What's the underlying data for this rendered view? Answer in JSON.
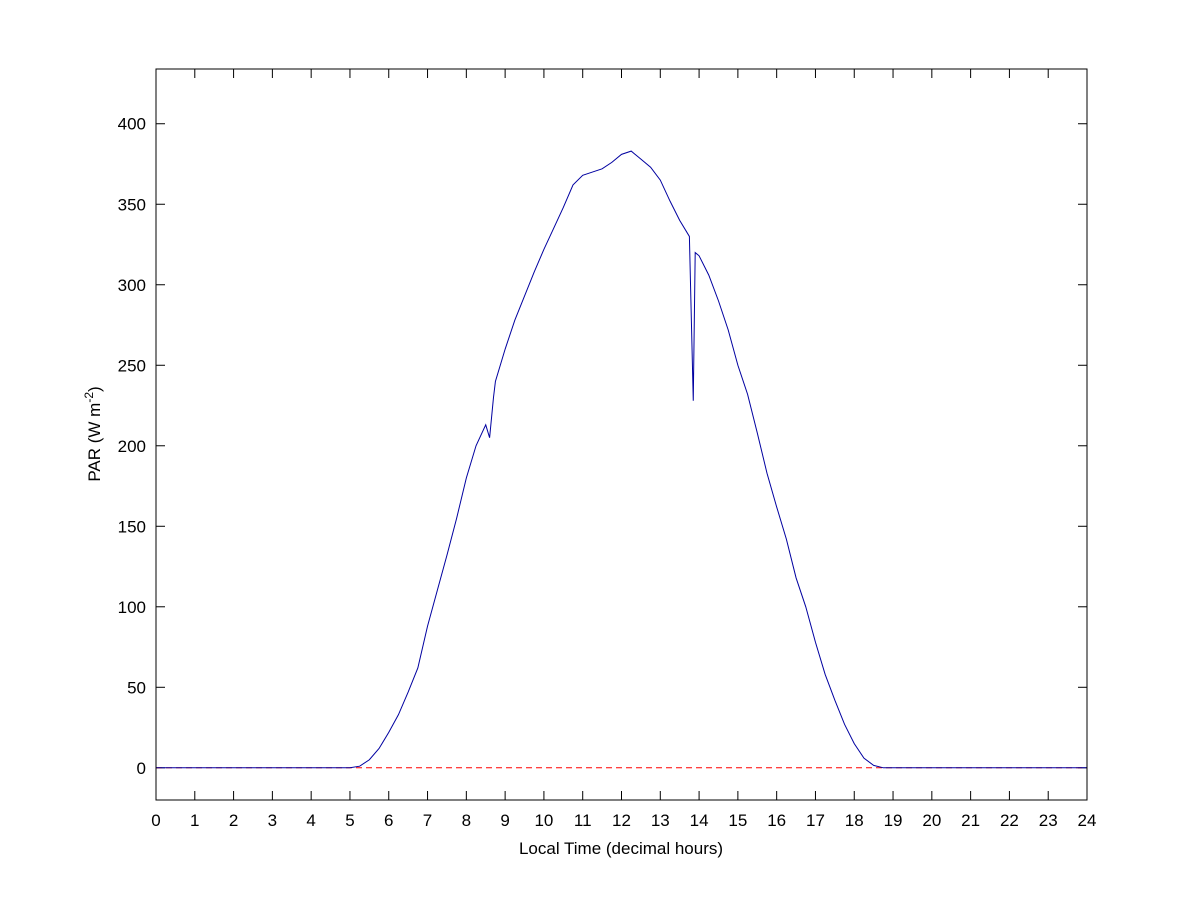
{
  "chart_data": {
    "type": "line",
    "xlabel": "Local Time (decimal hours)",
    "ylabel_parts": [
      "PAR (W m",
      "-2",
      ")"
    ],
    "x": [
      0,
      5,
      5.25,
      5.5,
      5.75,
      6,
      6.25,
      6.5,
      6.75,
      7,
      7.25,
      7.5,
      7.75,
      8,
      8.25,
      8.5,
      8.6,
      8.7,
      8.75,
      9,
      9.25,
      9.5,
      9.75,
      10,
      10.25,
      10.5,
      10.75,
      11,
      11.25,
      11.5,
      11.75,
      12,
      12.25,
      12.5,
      12.75,
      13,
      13.25,
      13.5,
      13.75,
      13.85,
      13.9,
      14,
      14.25,
      14.5,
      14.75,
      15,
      15.25,
      15.5,
      15.75,
      16,
      16.25,
      16.5,
      16.75,
      17,
      17.25,
      17.5,
      17.75,
      18,
      18.25,
      18.5,
      18.75,
      19,
      24
    ],
    "series": [
      {
        "color": "#0000a0",
        "values": [
          0,
          0,
          1,
          5,
          12,
          22,
          33,
          47,
          62,
          88,
          110,
          132,
          155,
          180,
          200,
          213,
          205,
          230,
          240,
          260,
          278,
          293,
          308,
          322,
          335,
          348,
          362,
          368,
          370,
          372,
          376,
          381,
          383,
          378,
          373,
          365,
          352,
          340,
          330,
          228,
          320,
          318,
          306,
          290,
          272,
          250,
          232,
          208,
          183,
          162,
          142,
          118,
          100,
          78,
          58,
          42,
          27,
          15,
          6,
          1.5,
          0,
          0,
          0
        ]
      }
    ],
    "reference_line": {
      "value": 0,
      "color": "#ff0000",
      "style": "dashed"
    },
    "xlim": [
      0,
      24
    ],
    "xticks": [
      0,
      1,
      2,
      3,
      4,
      5,
      6,
      7,
      8,
      9,
      10,
      11,
      12,
      13,
      14,
      15,
      16,
      17,
      18,
      19,
      20,
      21,
      22,
      23,
      24
    ],
    "ylim": [
      -20,
      434
    ],
    "yticks": [
      0,
      50,
      100,
      150,
      200,
      250,
      300,
      350,
      400
    ],
    "grid": false
  }
}
